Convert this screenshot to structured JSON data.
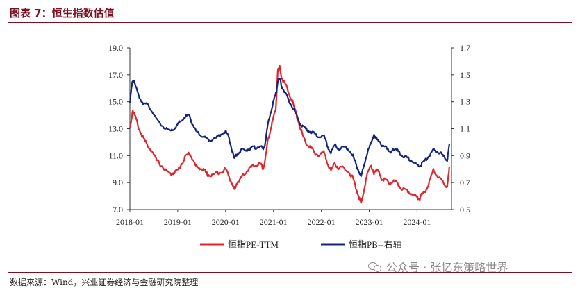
{
  "header": {
    "title": "图表 7：恒生指数估值"
  },
  "footer": {
    "source": "数据来源：Wind，兴业证券经济与金融研究院整理",
    "watermark": "公众号 · 张忆东策略世界"
  },
  "colors": {
    "pe": "#e0242c",
    "pb": "#14247a",
    "accent": "#7a1020"
  },
  "chart_data": {
    "type": "line",
    "title": "",
    "x_ticks": [
      "2018-01",
      "2019-01",
      "2020-01",
      "2021-01",
      "2022-01",
      "2023-01",
      "2024-01"
    ],
    "x_range": [
      "2018-01",
      "2024-09"
    ],
    "y_left": {
      "ticks": [
        "7.0",
        "9.0",
        "11.0",
        "13.0",
        "15.0",
        "17.0",
        "19.0"
      ],
      "range": [
        7.0,
        19.0
      ]
    },
    "y_right": {
      "ticks": [
        "0.5",
        "0.7",
        "0.9",
        "1.1",
        "1.3",
        "1.5",
        "1.7"
      ],
      "range": [
        0.5,
        1.7
      ]
    },
    "legend_position": "bottom",
    "series": [
      {
        "name": "恒指PE-TTM",
        "axis": "left",
        "color": "#e0242c",
        "points": [
          [
            2018.0,
            13.0
          ],
          [
            2018.06,
            14.4
          ],
          [
            2018.12,
            13.8
          ],
          [
            2018.2,
            12.9
          ],
          [
            2018.28,
            12.3
          ],
          [
            2018.36,
            11.8
          ],
          [
            2018.45,
            11.4
          ],
          [
            2018.55,
            10.7
          ],
          [
            2018.65,
            10.3
          ],
          [
            2018.75,
            9.9
          ],
          [
            2018.85,
            9.6
          ],
          [
            2018.93,
            9.8
          ],
          [
            2019.0,
            9.9
          ],
          [
            2019.08,
            10.4
          ],
          [
            2019.16,
            10.9
          ],
          [
            2019.24,
            11.2
          ],
          [
            2019.3,
            10.8
          ],
          [
            2019.38,
            10.2
          ],
          [
            2019.46,
            10.1
          ],
          [
            2019.55,
            9.9
          ],
          [
            2019.62,
            9.6
          ],
          [
            2019.7,
            9.5
          ],
          [
            2019.8,
            9.7
          ],
          [
            2019.9,
            9.8
          ],
          [
            2020.0,
            10.0
          ],
          [
            2020.06,
            9.6
          ],
          [
            2020.12,
            9.0
          ],
          [
            2020.18,
            8.5
          ],
          [
            2020.24,
            9.0
          ],
          [
            2020.32,
            9.3
          ],
          [
            2020.4,
            9.7
          ],
          [
            2020.48,
            10.0
          ],
          [
            2020.56,
            10.2
          ],
          [
            2020.64,
            10.3
          ],
          [
            2020.72,
            10.4
          ],
          [
            2020.78,
            10.1
          ],
          [
            2020.82,
            10.5
          ],
          [
            2020.88,
            12.0
          ],
          [
            2020.94,
            13.0
          ],
          [
            2021.0,
            13.8
          ],
          [
            2021.05,
            14.5
          ],
          [
            2021.09,
            17.3
          ],
          [
            2021.13,
            17.6
          ],
          [
            2021.18,
            16.7
          ],
          [
            2021.25,
            16.3
          ],
          [
            2021.33,
            15.6
          ],
          [
            2021.4,
            15.0
          ],
          [
            2021.48,
            14.0
          ],
          [
            2021.55,
            13.2
          ],
          [
            2021.62,
            12.4
          ],
          [
            2021.7,
            11.8
          ],
          [
            2021.78,
            11.6
          ],
          [
            2021.86,
            11.2
          ],
          [
            2021.95,
            11.0
          ],
          [
            2022.05,
            11.3
          ],
          [
            2022.12,
            10.5
          ],
          [
            2022.2,
            9.9
          ],
          [
            2022.28,
            10.4
          ],
          [
            2022.36,
            10.1
          ],
          [
            2022.45,
            10.1
          ],
          [
            2022.55,
            9.9
          ],
          [
            2022.65,
            9.4
          ],
          [
            2022.72,
            8.6
          ],
          [
            2022.78,
            8.0
          ],
          [
            2022.83,
            7.4
          ],
          [
            2022.88,
            8.3
          ],
          [
            2022.96,
            9.6
          ],
          [
            2023.04,
            10.3
          ],
          [
            2023.1,
            9.7
          ],
          [
            2023.18,
            9.9
          ],
          [
            2023.26,
            9.3
          ],
          [
            2023.34,
            9.2
          ],
          [
            2023.42,
            8.9
          ],
          [
            2023.5,
            9.1
          ],
          [
            2023.58,
            9.0
          ],
          [
            2023.66,
            8.6
          ],
          [
            2023.74,
            8.5
          ],
          [
            2023.82,
            8.4
          ],
          [
            2023.9,
            8.1
          ],
          [
            2024.0,
            7.9
          ],
          [
            2024.05,
            7.8
          ],
          [
            2024.1,
            8.1
          ],
          [
            2024.18,
            8.4
          ],
          [
            2024.26,
            9.1
          ],
          [
            2024.34,
            9.9
          ],
          [
            2024.42,
            9.5
          ],
          [
            2024.5,
            9.2
          ],
          [
            2024.58,
            8.8
          ],
          [
            2024.63,
            8.7
          ],
          [
            2024.68,
            10.2
          ]
        ]
      },
      {
        "name": "恒指PB--右轴",
        "axis": "right",
        "color": "#14247a",
        "points": [
          [
            2018.0,
            1.3
          ],
          [
            2018.05,
            1.44
          ],
          [
            2018.09,
            1.46
          ],
          [
            2018.14,
            1.39
          ],
          [
            2018.2,
            1.33
          ],
          [
            2018.28,
            1.29
          ],
          [
            2018.36,
            1.28
          ],
          [
            2018.45,
            1.24
          ],
          [
            2018.55,
            1.17
          ],
          [
            2018.65,
            1.13
          ],
          [
            2018.75,
            1.1
          ],
          [
            2018.85,
            1.08
          ],
          [
            2018.93,
            1.1
          ],
          [
            2019.0,
            1.13
          ],
          [
            2019.08,
            1.16
          ],
          [
            2019.16,
            1.19
          ],
          [
            2019.24,
            1.2
          ],
          [
            2019.3,
            1.14
          ],
          [
            2019.38,
            1.08
          ],
          [
            2019.46,
            1.06
          ],
          [
            2019.55,
            1.04
          ],
          [
            2019.62,
            1.02
          ],
          [
            2019.7,
            1.02
          ],
          [
            2019.8,
            1.03
          ],
          [
            2019.9,
            1.06
          ],
          [
            2020.0,
            1.08
          ],
          [
            2020.06,
            1.04
          ],
          [
            2020.12,
            0.96
          ],
          [
            2020.18,
            0.88
          ],
          [
            2020.24,
            0.91
          ],
          [
            2020.32,
            0.94
          ],
          [
            2020.4,
            0.94
          ],
          [
            2020.48,
            0.95
          ],
          [
            2020.56,
            0.96
          ],
          [
            2020.64,
            0.96
          ],
          [
            2020.72,
            0.97
          ],
          [
            2020.78,
            0.95
          ],
          [
            2020.82,
            0.98
          ],
          [
            2020.88,
            1.12
          ],
          [
            2020.94,
            1.22
          ],
          [
            2021.0,
            1.3
          ],
          [
            2021.05,
            1.36
          ],
          [
            2021.09,
            1.45
          ],
          [
            2021.13,
            1.47
          ],
          [
            2021.18,
            1.41
          ],
          [
            2021.25,
            1.36
          ],
          [
            2021.33,
            1.3
          ],
          [
            2021.4,
            1.26
          ],
          [
            2021.48,
            1.2
          ],
          [
            2021.55,
            1.14
          ],
          [
            2021.62,
            1.11
          ],
          [
            2021.7,
            1.09
          ],
          [
            2021.78,
            1.08
          ],
          [
            2021.86,
            1.06
          ],
          [
            2021.95,
            1.04
          ],
          [
            2022.05,
            1.05
          ],
          [
            2022.12,
            0.98
          ],
          [
            2022.2,
            0.92
          ],
          [
            2022.28,
            0.98
          ],
          [
            2022.36,
            0.95
          ],
          [
            2022.45,
            0.96
          ],
          [
            2022.55,
            0.95
          ],
          [
            2022.65,
            0.91
          ],
          [
            2022.72,
            0.84
          ],
          [
            2022.78,
            0.79
          ],
          [
            2022.83,
            0.74
          ],
          [
            2022.88,
            0.82
          ],
          [
            2022.96,
            0.92
          ],
          [
            2023.04,
            0.99
          ],
          [
            2023.1,
            1.06
          ],
          [
            2023.18,
            1.01
          ],
          [
            2023.26,
            0.98
          ],
          [
            2023.34,
            0.97
          ],
          [
            2023.42,
            0.92
          ],
          [
            2023.5,
            0.95
          ],
          [
            2023.58,
            0.94
          ],
          [
            2023.66,
            0.91
          ],
          [
            2023.74,
            0.89
          ],
          [
            2023.82,
            0.88
          ],
          [
            2023.9,
            0.86
          ],
          [
            2024.0,
            0.83
          ],
          [
            2024.05,
            0.82
          ],
          [
            2024.1,
            0.84
          ],
          [
            2024.18,
            0.87
          ],
          [
            2024.26,
            0.9
          ],
          [
            2024.34,
            0.94
          ],
          [
            2024.42,
            0.93
          ],
          [
            2024.5,
            0.92
          ],
          [
            2024.58,
            0.88
          ],
          [
            2024.63,
            0.87
          ],
          [
            2024.68,
            0.99
          ]
        ]
      }
    ]
  }
}
